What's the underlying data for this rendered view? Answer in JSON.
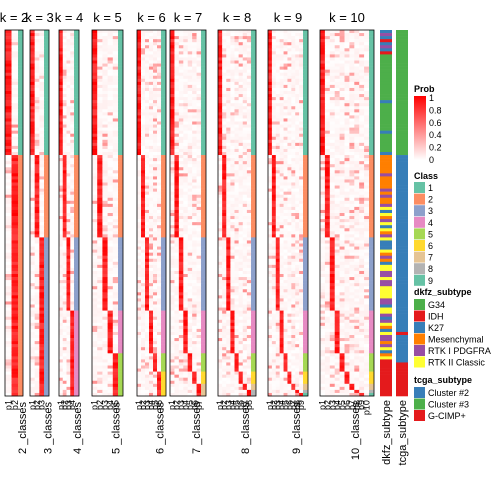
{
  "chart_data": {
    "type": "heatmap",
    "panels": [
      {
        "title": "k = 2",
        "classes": 2,
        "col_labels": [
          "p1",
          "p2"
        ],
        "xlabel": "2 _classes"
      },
      {
        "title": "k = 3",
        "classes": 3,
        "col_labels": [
          "p1",
          "p2",
          "p3"
        ],
        "xlabel": "3 _classes"
      },
      {
        "title": "k = 4",
        "classes": 4,
        "col_labels": [
          "p1",
          "p2",
          "p3",
          "p4"
        ],
        "xlabel": "4 _classes"
      },
      {
        "title": "k = 5",
        "classes": 5,
        "col_labels": [
          "p1",
          "p2",
          "p3",
          "p4",
          "p5"
        ],
        "xlabel": "5 _classes"
      },
      {
        "title": "k = 6",
        "classes": 6,
        "col_labels": [
          "p1",
          "p2",
          "p3",
          "p4",
          "p5",
          "p6"
        ],
        "xlabel": "6 _classes"
      },
      {
        "title": "k = 7",
        "classes": 7,
        "col_labels": [
          "p1",
          "p2",
          "p3",
          "p4",
          "p5",
          "p6",
          "p7"
        ],
        "xlabel": "7 _classes"
      },
      {
        "title": "k = 8",
        "classes": 8,
        "col_labels": [
          "p1",
          "p2",
          "p3",
          "p4",
          "p5",
          "p6",
          "p7",
          "p8"
        ],
        "xlabel": "8 _classes"
      },
      {
        "title": "k = 9",
        "classes": 9,
        "col_labels": [
          "p1",
          "p2",
          "p3",
          "p4",
          "p5",
          "p6",
          "p7",
          "p8",
          "p9"
        ],
        "xlabel": "9 _classes"
      },
      {
        "title": "k = 10",
        "classes": 10,
        "col_labels": [
          "p1",
          "p2",
          "p3",
          "p4",
          "p5",
          "p6",
          "p7",
          "p8",
          "p9",
          "p10"
        ],
        "xlabel": "10 _classes"
      }
    ],
    "annotation_columns": [
      "dkfz_subtype",
      "tcga_subtype"
    ],
    "legends": {
      "prob": {
        "title": "Prob",
        "ticks": [
          "1",
          "0.8",
          "0.6",
          "0.4",
          "0.2",
          "0"
        ],
        "color_low": "#FFFFFF",
        "color_high": "#FF0000"
      },
      "class": {
        "title": "Class",
        "items": [
          {
            "label": "1",
            "color": "#66C2A5"
          },
          {
            "label": "2",
            "color": "#FC8D62"
          },
          {
            "label": "3",
            "color": "#8DA0CB"
          },
          {
            "label": "4",
            "color": "#E78AC3"
          },
          {
            "label": "5",
            "color": "#A6D854"
          },
          {
            "label": "6",
            "color": "#FFD92F"
          },
          {
            "label": "7",
            "color": "#E5C494"
          },
          {
            "label": "8",
            "color": "#B3B3B3"
          },
          {
            "label": "9",
            "color": "#66C2A5"
          }
        ]
      },
      "dkfz_subtype": {
        "title": "dkfz_subtype",
        "items": [
          {
            "label": "G34",
            "color": "#4DAF4A"
          },
          {
            "label": "IDH",
            "color": "#E41A1C"
          },
          {
            "label": "K27",
            "color": "#377EB8"
          },
          {
            "label": "Mesenchymal",
            "color": "#FF7F00"
          },
          {
            "label": "RTK I PDGFRA",
            "color": "#984EA3"
          },
          {
            "label": "RTK II Classic",
            "color": "#FFFF33"
          }
        ]
      },
      "tcga_subtype": {
        "title": "tcga_subtype",
        "items": [
          {
            "label": "Cluster #2",
            "color": "#377EB8"
          },
          {
            "label": "Cluster #3",
            "color": "#4DAF4A"
          },
          {
            "label": "G-CIMP+",
            "color": "#E41A1C"
          }
        ]
      }
    }
  }
}
